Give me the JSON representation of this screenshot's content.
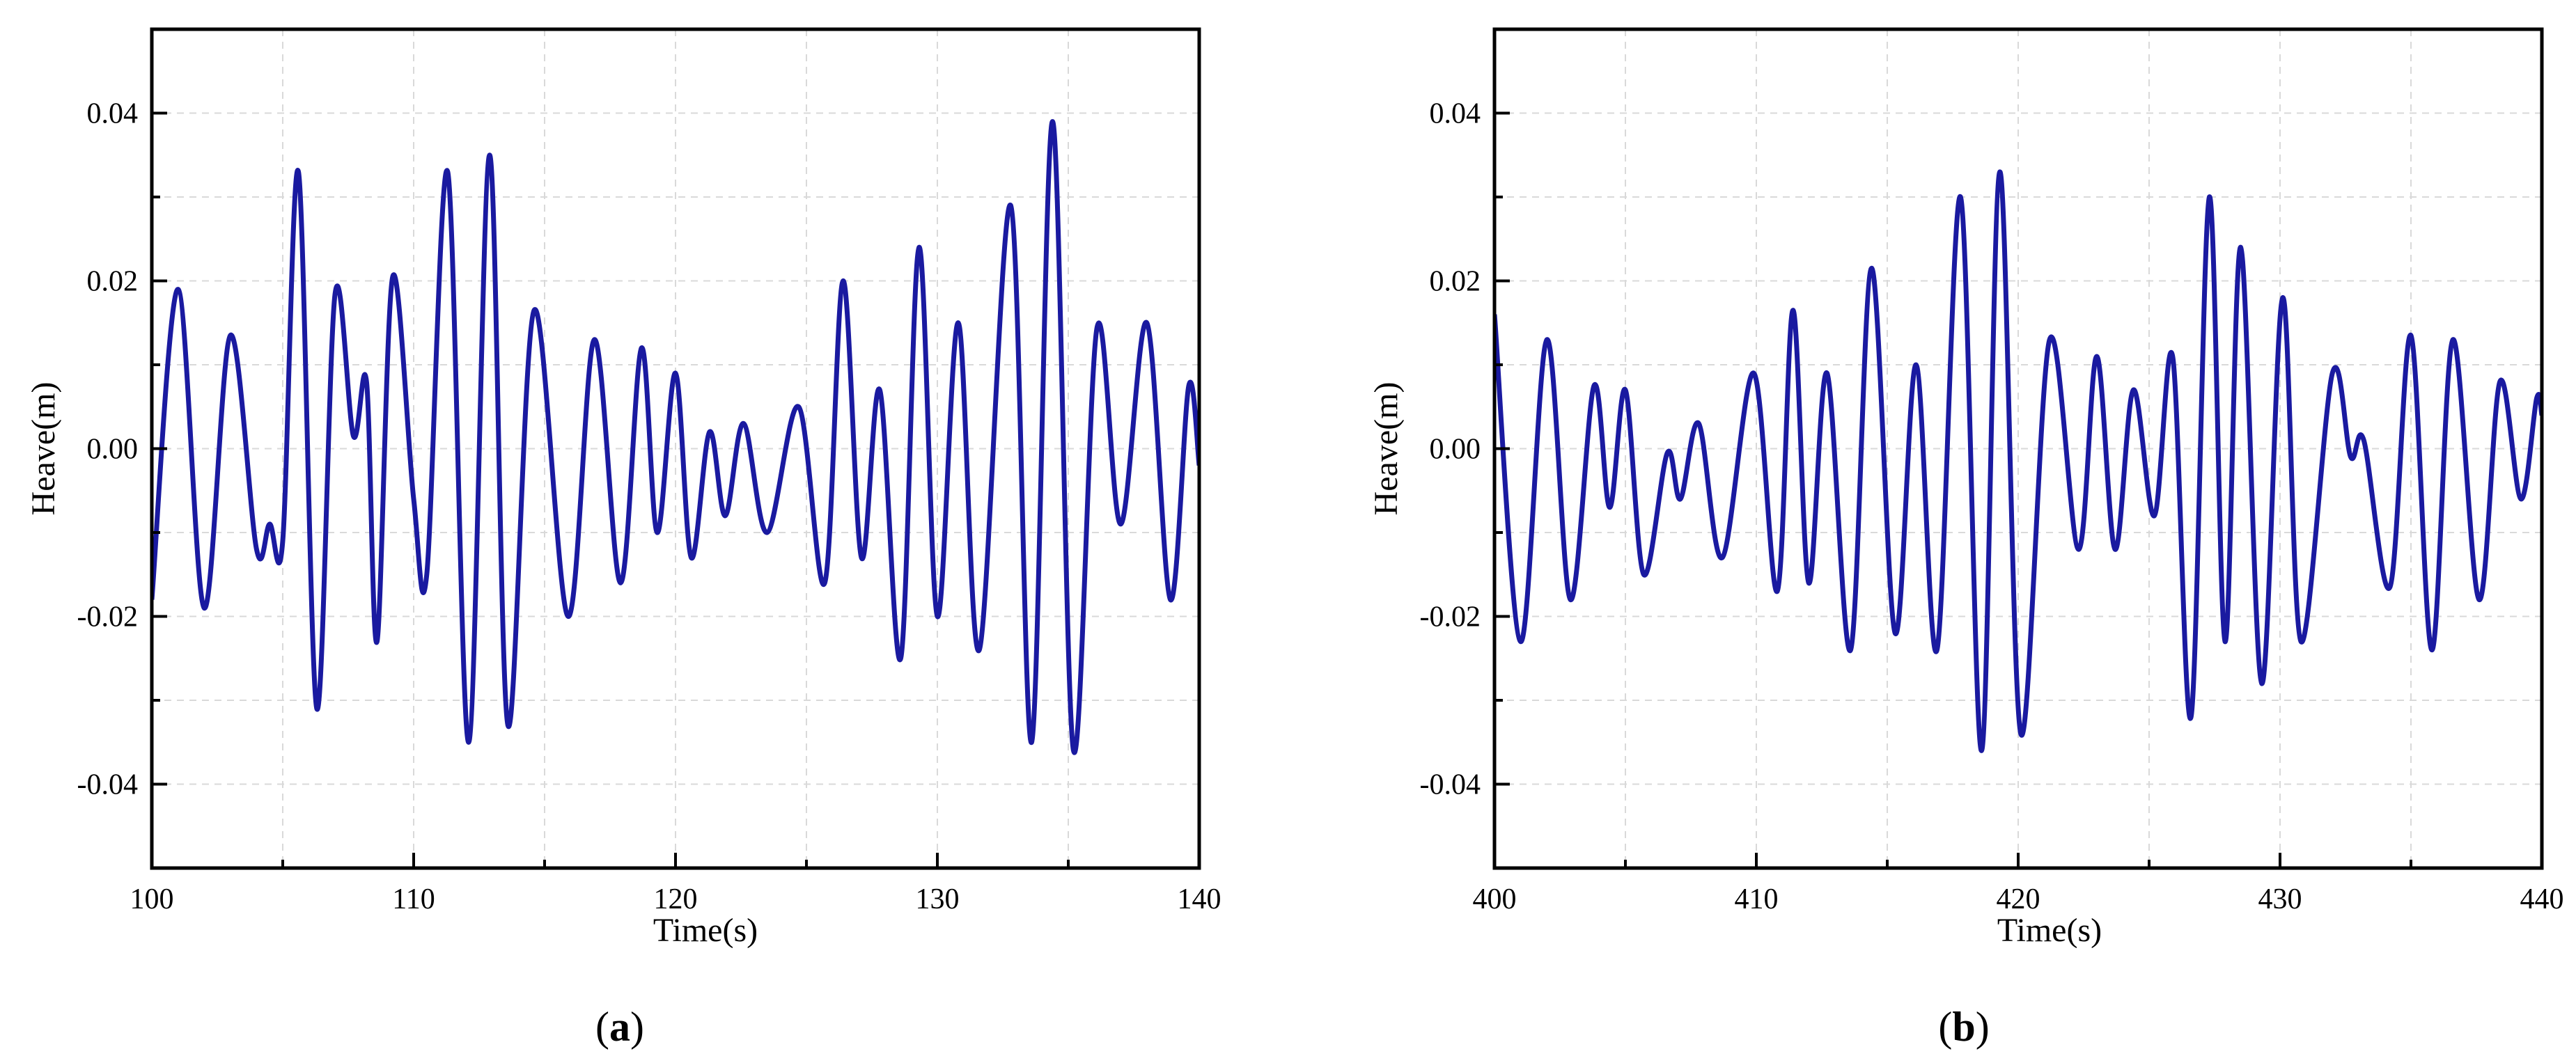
{
  "figure": {
    "caption_a": {
      "open": "(",
      "letter": "a",
      "close": ")"
    },
    "caption_b": {
      "open": "(",
      "letter": "b",
      "close": ")"
    }
  },
  "chart_data": [
    {
      "type": "line",
      "panel": "a",
      "xlabel": "Time(s)",
      "ylabel": "Heave(m)",
      "xlim": [
        100,
        140
      ],
      "ylim": [
        -0.05,
        0.05
      ],
      "xticks": [
        100,
        110,
        120,
        130,
        140
      ],
      "xtick_labels": [
        "100",
        "110",
        "120",
        "130",
        "140"
      ],
      "yticks": [
        -0.04,
        -0.02,
        0.0,
        0.02,
        0.04
      ],
      "ytick_labels": [
        "-0.04",
        "-0.02",
        "0.00",
        "0.02",
        "0.04"
      ],
      "grid": true,
      "line_color": "#1a1aa0",
      "series": [
        {
          "x": [
            100.0,
            101.0,
            102.0,
            103.0,
            104.0,
            104.5,
            105.0,
            105.6,
            106.3,
            107.0,
            107.7,
            108.2,
            108.6,
            109.2,
            110.0,
            110.5,
            111.3,
            112.1,
            112.9,
            113.6,
            114.6,
            115.9,
            116.9,
            117.9,
            118.7,
            119.3,
            120.0,
            120.6,
            121.3,
            121.9,
            122.6,
            123.5,
            124.7,
            125.7,
            126.4,
            127.1,
            127.8,
            128.6,
            129.3,
            130.0,
            130.8,
            131.6,
            132.8,
            133.6,
            134.4,
            135.2,
            136.1,
            137.0,
            138.0,
            138.9,
            139.6,
            140.0
          ],
          "y": [
            -0.018,
            0.019,
            -0.019,
            0.0135,
            -0.012,
            -0.009,
            -0.011,
            0.033,
            -0.031,
            0.0185,
            0.0015,
            0.008,
            -0.023,
            0.0205,
            -0.006,
            -0.015,
            0.033,
            -0.035,
            0.035,
            -0.033,
            0.0165,
            -0.02,
            0.013,
            -0.016,
            0.012,
            -0.01,
            0.009,
            -0.013,
            0.002,
            -0.008,
            0.003,
            -0.01,
            0.005,
            -0.016,
            0.02,
            -0.013,
            0.007,
            -0.025,
            0.024,
            -0.02,
            0.015,
            -0.024,
            0.029,
            -0.035,
            0.039,
            -0.036,
            0.0145,
            -0.009,
            0.015,
            -0.018,
            0.0075,
            -0.002
          ]
        }
      ]
    },
    {
      "type": "line",
      "panel": "b",
      "xlabel": "Time(s)",
      "ylabel": "Heave(m)",
      "xlim": [
        400,
        440
      ],
      "ylim": [
        -0.05,
        0.05
      ],
      "xticks": [
        400,
        410,
        420,
        430,
        440
      ],
      "xtick_labels": [
        "400",
        "410",
        "420",
        "430",
        "440"
      ],
      "yticks": [
        -0.04,
        -0.02,
        0.0,
        0.02,
        0.04
      ],
      "ytick_labels": [
        "-0.04",
        "-0.02",
        "0.00",
        "0.02",
        "0.04"
      ],
      "grid": true,
      "line_color": "#1a1aa0",
      "series": [
        {
          "x": [
            400.0,
            401.0,
            402.0,
            402.9,
            403.8,
            404.4,
            405.0,
            405.7,
            406.6,
            407.1,
            407.8,
            408.7,
            409.9,
            410.8,
            411.4,
            412.0,
            412.7,
            413.6,
            414.4,
            415.3,
            416.1,
            416.9,
            417.8,
            418.6,
            419.3,
            420.1,
            421.2,
            422.3,
            423.0,
            423.7,
            424.4,
            425.2,
            425.9,
            426.6,
            427.3,
            427.9,
            428.5,
            429.3,
            430.1,
            430.8,
            432.0,
            432.7,
            433.2,
            434.2,
            435.0,
            435.8,
            436.6,
            437.6,
            438.4,
            439.2,
            439.8,
            440.0
          ],
          "y": [
            0.016,
            -0.023,
            0.013,
            -0.018,
            0.0075,
            -0.007,
            0.007,
            -0.015,
            -0.0005,
            -0.006,
            0.003,
            -0.013,
            0.009,
            -0.017,
            0.0165,
            -0.016,
            0.009,
            -0.024,
            0.0215,
            -0.022,
            0.01,
            -0.024,
            0.03,
            -0.036,
            0.033,
            -0.034,
            0.013,
            -0.012,
            0.011,
            -0.012,
            0.007,
            -0.008,
            0.011,
            -0.032,
            0.03,
            -0.023,
            0.024,
            -0.028,
            0.018,
            -0.023,
            0.009,
            -0.001,
            0.001,
            -0.0165,
            0.0135,
            -0.024,
            0.013,
            -0.018,
            0.008,
            -0.006,
            0.006,
            0.004
          ]
        }
      ]
    }
  ]
}
